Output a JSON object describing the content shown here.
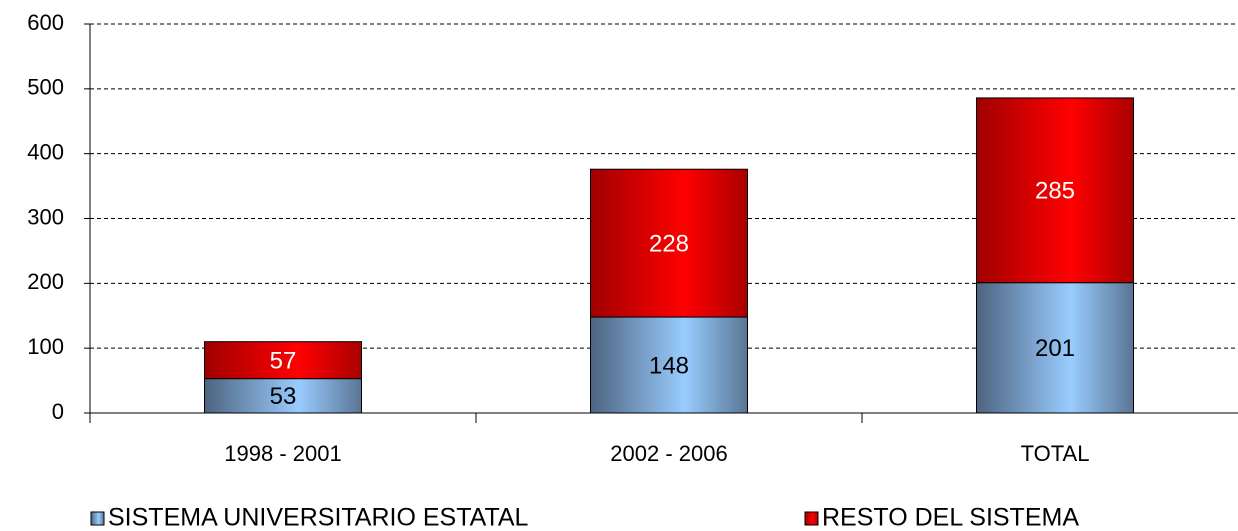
{
  "chart_data": {
    "type": "stacked_bar",
    "categories": [
      "1998 - 2001",
      "2002 - 2006",
      "TOTAL"
    ],
    "series": [
      {
        "name": "SISTEMA UNIVERSITARIO ESTATAL",
        "color": "#99ccff",
        "values": [
          53,
          148,
          201
        ]
      },
      {
        "name": "RESTO DEL SISTEMA",
        "color": "#ff0000",
        "values": [
          57,
          228,
          285
        ]
      }
    ],
    "ylim": [
      0,
      600
    ],
    "yticks": [
      0,
      100,
      200,
      300,
      400,
      500,
      600
    ],
    "grid": true,
    "legend": "bottom"
  }
}
